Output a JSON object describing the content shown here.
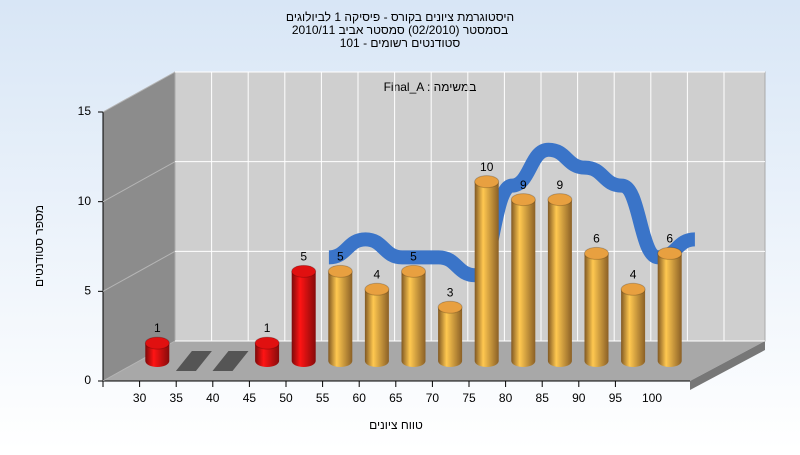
{
  "chart_data": {
    "type": "bar3d",
    "title": [
      "היסטוגרמת ציונים בקורס - פיסיקה 1 לביולוגים",
      "בסמסטר (02/2010) סמסטר אביב 2010/11",
      "סטודנטים רשומים - 101"
    ],
    "annotation": "Final_A : במשימה",
    "x_label": "טווח ציונים",
    "y_label": "מספר סטודנטים",
    "categories": [
      "30",
      "35",
      "40",
      "45",
      "50",
      "55",
      "60",
      "65",
      "70",
      "75",
      "80",
      "85",
      "90",
      "95",
      "100"
    ],
    "values": [
      1,
      0,
      0,
      1,
      5,
      5,
      4,
      5,
      3,
      10,
      9,
      9,
      6,
      4,
      6
    ],
    "colors": [
      "#e01010",
      "#888888",
      "#888888",
      "#e01010",
      "#e01010",
      "#e8a040",
      "#e8a040",
      "#e8a040",
      "#e8a040",
      "#e8a040",
      "#e8a040",
      "#e8a040",
      "#e8a040",
      "#e8a040",
      "#e8a040"
    ],
    "line": {
      "color": "#3a74c8",
      "values": [
        null,
        null,
        null,
        null,
        5,
        6,
        5,
        5,
        4,
        9,
        11,
        10,
        9,
        5,
        6
      ]
    },
    "ylim": [
      0,
      15
    ],
    "yticks": [
      0,
      5,
      10,
      15
    ],
    "grid": true
  }
}
